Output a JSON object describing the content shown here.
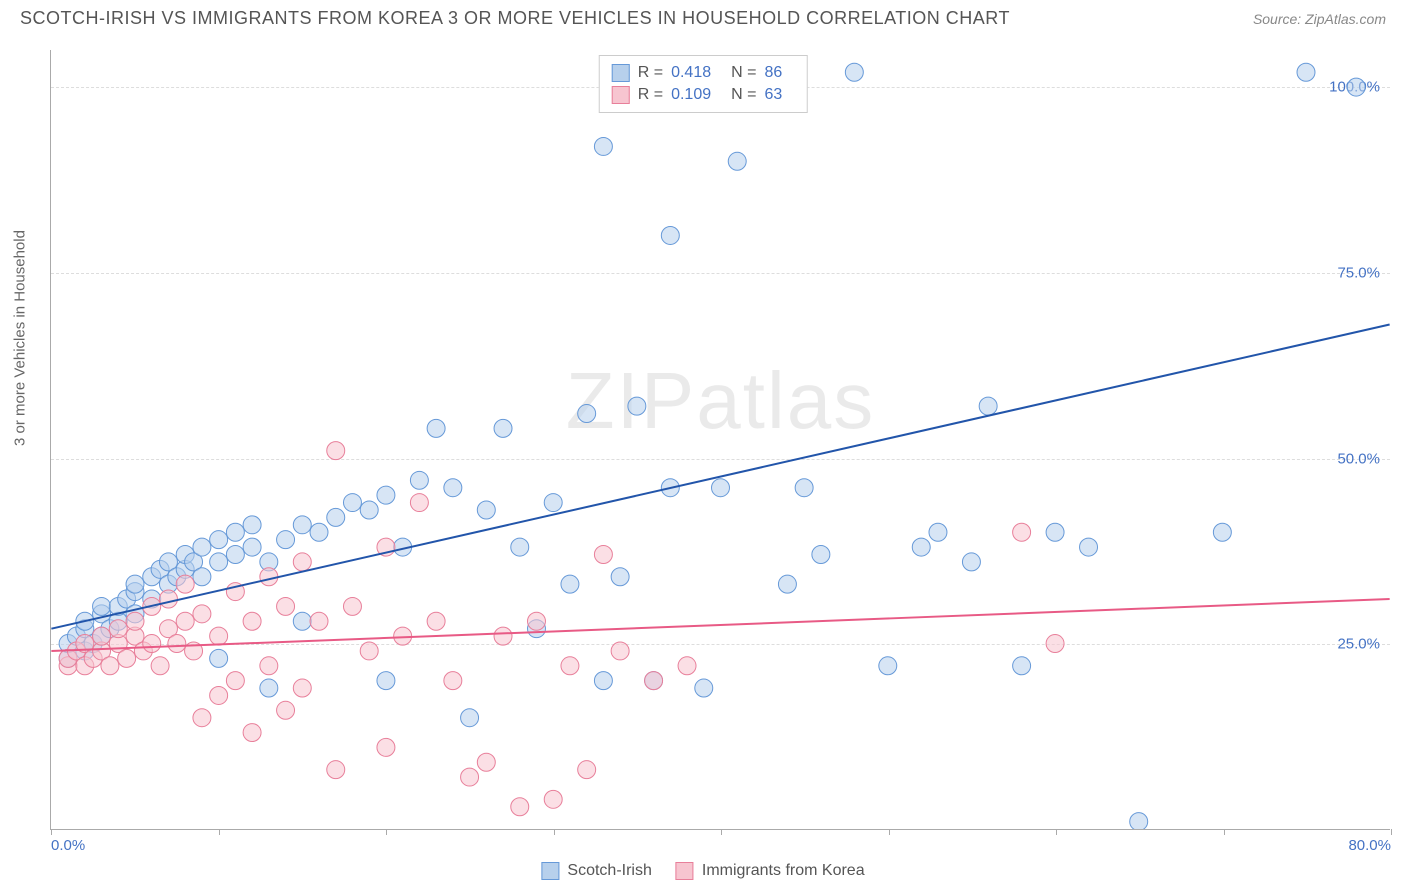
{
  "header": {
    "title": "SCOTCH-IRISH VS IMMIGRANTS FROM KOREA 3 OR MORE VEHICLES IN HOUSEHOLD CORRELATION CHART",
    "source": "Source: ZipAtlas.com"
  },
  "chart": {
    "type": "scatter",
    "ylabel": "3 or more Vehicles in Household",
    "watermark": "ZIPatlas",
    "xlim": [
      0,
      80
    ],
    "ylim": [
      0,
      105
    ],
    "background_color": "#ffffff",
    "grid_color": "#dddddd",
    "axis_color": "#aaaaaa",
    "tick_label_color": "#4472c4",
    "ytick_labels": [
      "25.0%",
      "50.0%",
      "75.0%",
      "100.0%"
    ],
    "ytick_values": [
      25,
      50,
      75,
      100
    ],
    "xtick_labels": [
      "0.0%",
      "80.0%"
    ],
    "xtick_values": [
      0,
      80
    ],
    "xtick_marks": [
      0,
      10,
      20,
      30,
      40,
      50,
      60,
      70,
      80
    ],
    "series": [
      {
        "name": "Scotch-Irish",
        "marker_fill": "#b7d0ec",
        "marker_stroke": "#6699d8",
        "marker_opacity": 0.55,
        "marker_radius": 9,
        "line_color": "#2255aa",
        "line_width": 2,
        "R": "0.418",
        "N": "86",
        "trend": {
          "x1": 0,
          "y1": 27,
          "x2": 80,
          "y2": 68
        },
        "points": [
          [
            1,
            23
          ],
          [
            1,
            25
          ],
          [
            1.5,
            26
          ],
          [
            2,
            24
          ],
          [
            2,
            27
          ],
          [
            2,
            28
          ],
          [
            2.5,
            25
          ],
          [
            3,
            26
          ],
          [
            3,
            29
          ],
          [
            3,
            30
          ],
          [
            3.5,
            27
          ],
          [
            4,
            28
          ],
          [
            4,
            30
          ],
          [
            4.5,
            31
          ],
          [
            5,
            29
          ],
          [
            5,
            32
          ],
          [
            5,
            33
          ],
          [
            6,
            31
          ],
          [
            6,
            34
          ],
          [
            6.5,
            35
          ],
          [
            7,
            33
          ],
          [
            7,
            36
          ],
          [
            7.5,
            34
          ],
          [
            8,
            35
          ],
          [
            8,
            37
          ],
          [
            8.5,
            36
          ],
          [
            9,
            38
          ],
          [
            9,
            34
          ],
          [
            10,
            36
          ],
          [
            10,
            39
          ],
          [
            10,
            23
          ],
          [
            11,
            37
          ],
          [
            11,
            40
          ],
          [
            12,
            38
          ],
          [
            12,
            41
          ],
          [
            13,
            36
          ],
          [
            13,
            19
          ],
          [
            14,
            39
          ],
          [
            15,
            41
          ],
          [
            15,
            28
          ],
          [
            16,
            40
          ],
          [
            17,
            42
          ],
          [
            18,
            44
          ],
          [
            19,
            43
          ],
          [
            20,
            45
          ],
          [
            20,
            20
          ],
          [
            21,
            38
          ],
          [
            22,
            47
          ],
          [
            23,
            54
          ],
          [
            24,
            46
          ],
          [
            25,
            15
          ],
          [
            26,
            43
          ],
          [
            27,
            54
          ],
          [
            28,
            38
          ],
          [
            29,
            27
          ],
          [
            30,
            44
          ],
          [
            31,
            33
          ],
          [
            32,
            56
          ],
          [
            33,
            20
          ],
          [
            33,
            92
          ],
          [
            34,
            34
          ],
          [
            35,
            57
          ],
          [
            36,
            20
          ],
          [
            37,
            80
          ],
          [
            37,
            46
          ],
          [
            38,
            102
          ],
          [
            39,
            19
          ],
          [
            40,
            46
          ],
          [
            41,
            90
          ],
          [
            43,
            102
          ],
          [
            44,
            33
          ],
          [
            45,
            46
          ],
          [
            46,
            37
          ],
          [
            48,
            102
          ],
          [
            50,
            22
          ],
          [
            52,
            38
          ],
          [
            53,
            40
          ],
          [
            55,
            36
          ],
          [
            56,
            57
          ],
          [
            58,
            22
          ],
          [
            60,
            40
          ],
          [
            62,
            38
          ],
          [
            65,
            1
          ],
          [
            70,
            40
          ],
          [
            75,
            102
          ],
          [
            78,
            100
          ]
        ]
      },
      {
        "name": "Immigrants from Korea",
        "marker_fill": "#f7c5d0",
        "marker_stroke": "#e87f9a",
        "marker_opacity": 0.55,
        "marker_radius": 9,
        "line_color": "#e85a85",
        "line_width": 2,
        "R": "0.109",
        "N": "63",
        "trend": {
          "x1": 0,
          "y1": 24,
          "x2": 80,
          "y2": 31
        },
        "points": [
          [
            1,
            22
          ],
          [
            1,
            23
          ],
          [
            1.5,
            24
          ],
          [
            2,
            22
          ],
          [
            2,
            25
          ],
          [
            2.5,
            23
          ],
          [
            3,
            24
          ],
          [
            3,
            26
          ],
          [
            3.5,
            22
          ],
          [
            4,
            25
          ],
          [
            4,
            27
          ],
          [
            4.5,
            23
          ],
          [
            5,
            26
          ],
          [
            5,
            28
          ],
          [
            5.5,
            24
          ],
          [
            6,
            25
          ],
          [
            6,
            30
          ],
          [
            6.5,
            22
          ],
          [
            7,
            27
          ],
          [
            7,
            31
          ],
          [
            7.5,
            25
          ],
          [
            8,
            28
          ],
          [
            8,
            33
          ],
          [
            8.5,
            24
          ],
          [
            9,
            29
          ],
          [
            9,
            15
          ],
          [
            10,
            26
          ],
          [
            10,
            18
          ],
          [
            11,
            32
          ],
          [
            11,
            20
          ],
          [
            12,
            28
          ],
          [
            12,
            13
          ],
          [
            13,
            34
          ],
          [
            13,
            22
          ],
          [
            14,
            30
          ],
          [
            14,
            16
          ],
          [
            15,
            36
          ],
          [
            15,
            19
          ],
          [
            16,
            28
          ],
          [
            17,
            51
          ],
          [
            17,
            8
          ],
          [
            18,
            30
          ],
          [
            19,
            24
          ],
          [
            20,
            38
          ],
          [
            20,
            11
          ],
          [
            21,
            26
          ],
          [
            22,
            44
          ],
          [
            23,
            28
          ],
          [
            24,
            20
          ],
          [
            25,
            7
          ],
          [
            26,
            9
          ],
          [
            27,
            26
          ],
          [
            28,
            3
          ],
          [
            29,
            28
          ],
          [
            30,
            4
          ],
          [
            31,
            22
          ],
          [
            32,
            8
          ],
          [
            33,
            37
          ],
          [
            34,
            24
          ],
          [
            36,
            20
          ],
          [
            38,
            22
          ],
          [
            58,
            40
          ],
          [
            60,
            25
          ]
        ]
      }
    ]
  },
  "legend_top": {
    "rows": [
      {
        "swatch_fill": "#b7d0ec",
        "swatch_stroke": "#6699d8",
        "R": "0.418",
        "N": "86"
      },
      {
        "swatch_fill": "#f7c5d0",
        "swatch_stroke": "#e87f9a",
        "R": "0.109",
        "N": "63"
      }
    ]
  },
  "legend_bottom": {
    "items": [
      {
        "swatch_fill": "#b7d0ec",
        "swatch_stroke": "#6699d8",
        "label": "Scotch-Irish"
      },
      {
        "swatch_fill": "#f7c5d0",
        "swatch_stroke": "#e87f9a",
        "label": "Immigrants from Korea"
      }
    ]
  }
}
